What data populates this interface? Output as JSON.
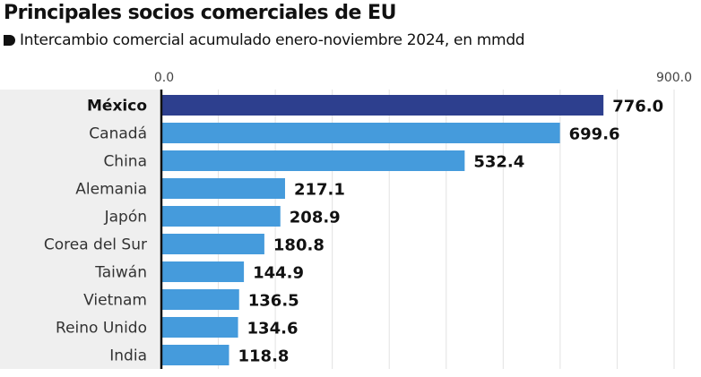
{
  "chart_data": {
    "type": "bar",
    "orientation": "horizontal",
    "title": "Principales socios comerciales de EU",
    "subtitle": "Intercambio comercial acumulado enero-noviembre 2024, en mmdd",
    "categories": [
      "México",
      "Canadá",
      "China",
      "Alemania",
      "Japón",
      "Corea del Sur",
      "Taiwán",
      "Vietnam",
      "Reino Unido",
      "India"
    ],
    "values": [
      776.0,
      699.6,
      532.4,
      217.1,
      208.9,
      180.8,
      144.9,
      136.5,
      134.6,
      118.8
    ],
    "value_labels": [
      "776.0",
      "699.6",
      "532.4",
      "217.1",
      "208.9",
      "180.8",
      "144.9",
      "136.5",
      "134.6",
      "118.8"
    ],
    "xlim": [
      0,
      900
    ],
    "tick_labels": [
      "0.0",
      "900.0"
    ],
    "grid": true,
    "grid_step": 100,
    "colors": {
      "highlight": "#2d3f8e",
      "bar": "#459bdc",
      "label_bg": "#efefef"
    },
    "highlight_index": 0
  }
}
